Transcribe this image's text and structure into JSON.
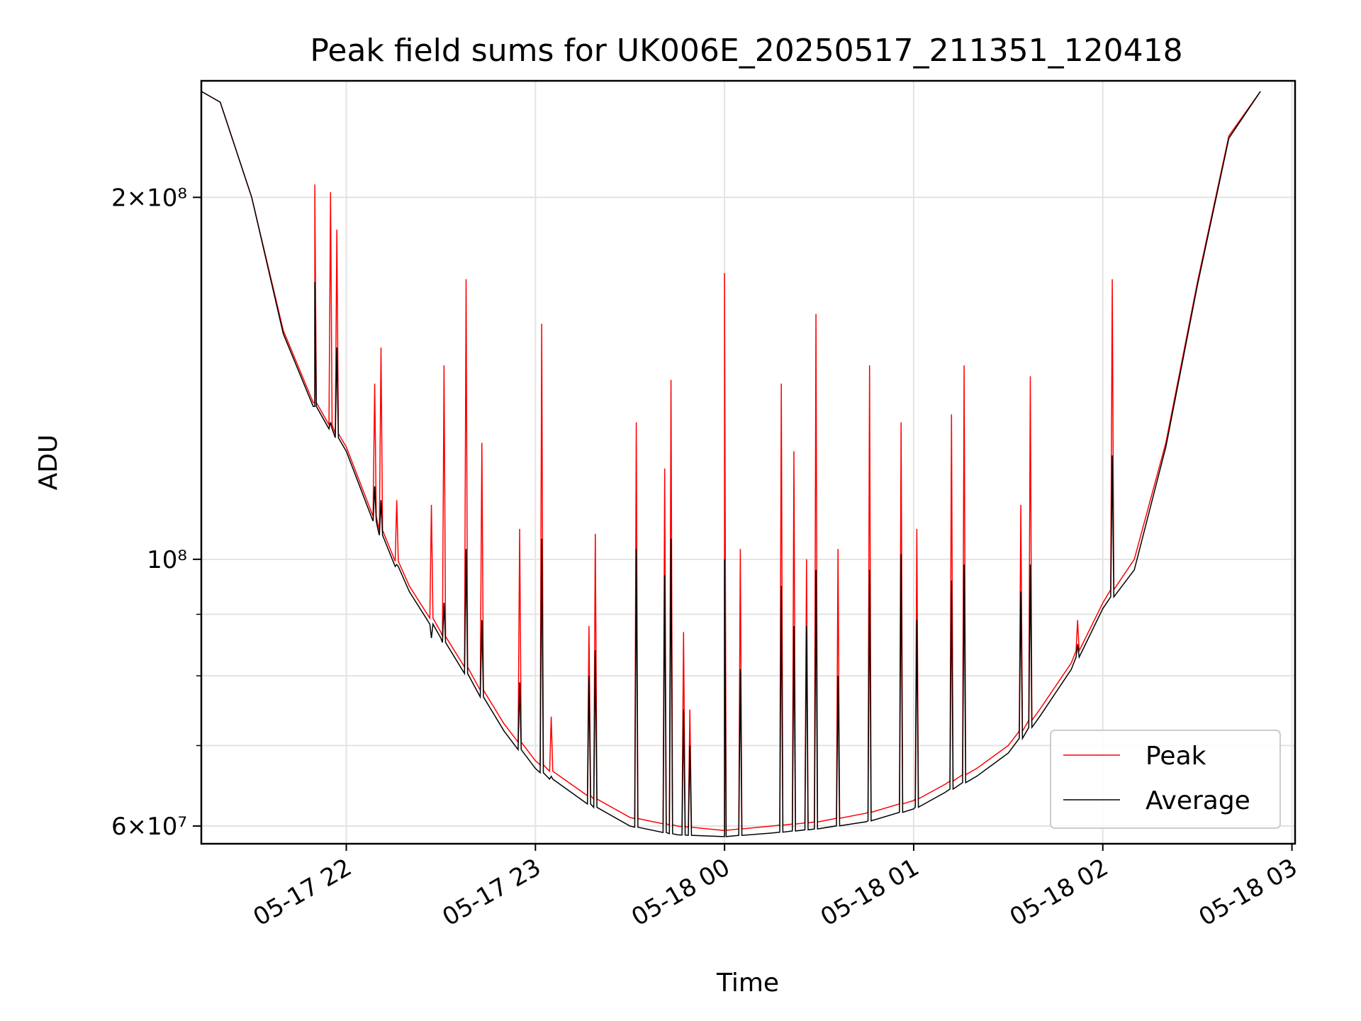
{
  "chart_data": {
    "type": "line",
    "title": "Peak field sums for UK006E_20250517_211351_120418",
    "xlabel": "Time",
    "ylabel": "ADU",
    "yscale": "log",
    "grid": true,
    "legend_position": "lower-right",
    "xlim": [
      "2025-05-17 21:14",
      "2025-05-18 03:01"
    ],
    "ylim": [
      58000000,
      250000000
    ],
    "x_ticks": [
      "05-17 22",
      "05-17 23",
      "05-18 00",
      "05-18 01",
      "05-18 02",
      "05-18 03"
    ],
    "y_ticks": [
      {
        "value": 60000000,
        "label": "6×10⁷"
      },
      {
        "value": 100000000,
        "label": "10⁸"
      },
      {
        "value": 200000000,
        "label": "2×10⁸"
      }
    ],
    "series": [
      {
        "name": "Peak",
        "color": "#ff0000",
        "x": [
          "2025-05-17 21:14",
          "2025-05-17 21:20",
          "2025-05-17 21:30",
          "2025-05-17 21:40",
          "2025-05-17 21:50",
          "2025-05-17 22:00",
          "2025-05-17 22:10",
          "2025-05-17 22:20",
          "2025-05-17 22:30",
          "2025-05-17 22:40",
          "2025-05-17 22:50",
          "2025-05-17 23:00",
          "2025-05-17 23:15",
          "2025-05-17 23:30",
          "2025-05-17 23:45",
          "2025-05-18 00:00",
          "2025-05-18 00:15",
          "2025-05-18 00:30",
          "2025-05-18 00:45",
          "2025-05-18 01:00",
          "2025-05-18 01:10",
          "2025-05-18 01:20",
          "2025-05-18 01:30",
          "2025-05-18 01:40",
          "2025-05-18 01:50",
          "2025-05-18 02:00",
          "2025-05-18 02:10",
          "2025-05-18 02:20",
          "2025-05-18 02:30",
          "2025-05-18 02:40",
          "2025-05-18 02:50"
        ],
        "values": [
          245000000,
          240000000,
          200000000,
          155000000,
          135000000,
          124000000,
          107000000,
          95000000,
          87000000,
          80000000,
          73000000,
          68000000,
          64000000,
          61000000,
          60000000,
          59500000,
          60000000,
          60500000,
          61500000,
          63000000,
          65000000,
          67000000,
          70000000,
          75000000,
          82000000,
          92000000,
          100000000,
          125000000,
          170000000,
          225000000,
          245000000
        ]
      },
      {
        "name": "Average",
        "color": "#000000",
        "x": [
          "2025-05-17 21:14",
          "2025-05-17 21:20",
          "2025-05-17 21:30",
          "2025-05-17 21:40",
          "2025-05-17 21:50",
          "2025-05-17 22:00",
          "2025-05-17 22:10",
          "2025-05-17 22:20",
          "2025-05-17 22:30",
          "2025-05-17 22:40",
          "2025-05-17 22:50",
          "2025-05-17 23:00",
          "2025-05-17 23:15",
          "2025-05-17 23:30",
          "2025-05-17 23:45",
          "2025-05-18 00:00",
          "2025-05-18 00:15",
          "2025-05-18 00:30",
          "2025-05-18 00:45",
          "2025-05-18 01:00",
          "2025-05-18 01:10",
          "2025-05-18 01:20",
          "2025-05-18 01:30",
          "2025-05-18 01:40",
          "2025-05-18 01:50",
          "2025-05-18 02:00",
          "2025-05-18 02:10",
          "2025-05-18 02:20",
          "2025-05-18 02:30",
          "2025-05-18 02:40",
          "2025-05-18 02:50"
        ],
        "values": [
          245000000,
          240000000,
          200000000,
          154000000,
          134000000,
          123000000,
          106000000,
          94000000,
          86000000,
          79000000,
          72000000,
          67000000,
          63000000,
          60000000,
          59000000,
          58800000,
          59200000,
          59700000,
          60500000,
          62000000,
          64000000,
          66000000,
          69000000,
          74000000,
          81000000,
          91000000,
          98000000,
          124000000,
          169000000,
          224000000,
          245000000
        ]
      }
    ],
    "spikes": [
      {
        "x": "2025-05-17 21:50",
        "peak": 205000000,
        "average": 170000000
      },
      {
        "x": "2025-05-17 21:55",
        "peak": 202000000,
        "average": 130000000
      },
      {
        "x": "2025-05-17 21:57",
        "peak": 188000000,
        "average": 150000000
      },
      {
        "x": "2025-05-17 22:09",
        "peak": 140000000,
        "average": 115000000
      },
      {
        "x": "2025-05-17 22:11",
        "peak": 150000000,
        "average": 112000000
      },
      {
        "x": "2025-05-17 22:16",
        "peak": 112000000,
        "average": 99000000
      },
      {
        "x": "2025-05-17 22:27",
        "peak": 111000000,
        "average": 86000000
      },
      {
        "x": "2025-05-17 22:31",
        "peak": 145000000,
        "average": 92000000
      },
      {
        "x": "2025-05-17 22:38",
        "peak": 171000000,
        "average": 102000000
      },
      {
        "x": "2025-05-17 22:43",
        "peak": 125000000,
        "average": 89000000
      },
      {
        "x": "2025-05-17 22:55",
        "peak": 106000000,
        "average": 79000000
      },
      {
        "x": "2025-05-17 23:02",
        "peak": 157000000,
        "average": 104000000
      },
      {
        "x": "2025-05-17 23:05",
        "peak": 74000000,
        "average": 66000000
      },
      {
        "x": "2025-05-17 23:17",
        "peak": 88000000,
        "average": 80000000
      },
      {
        "x": "2025-05-17 23:19",
        "peak": 105000000,
        "average": 84000000
      },
      {
        "x": "2025-05-17 23:32",
        "peak": 130000000,
        "average": 102000000
      },
      {
        "x": "2025-05-17 23:41",
        "peak": 119000000,
        "average": 97000000
      },
      {
        "x": "2025-05-17 23:43",
        "peak": 141000000,
        "average": 104000000
      },
      {
        "x": "2025-05-17 23:47",
        "peak": 87000000,
        "average": 75000000
      },
      {
        "x": "2025-05-17 23:49",
        "peak": 75000000,
        "average": 70000000
      },
      {
        "x": "2025-05-18 00:00",
        "peak": 173000000,
        "average": 100000000
      },
      {
        "x": "2025-05-18 00:05",
        "peak": 102000000,
        "average": 81000000
      },
      {
        "x": "2025-05-18 00:18",
        "peak": 140000000,
        "average": 95000000
      },
      {
        "x": "2025-05-18 00:22",
        "peak": 123000000,
        "average": 88000000
      },
      {
        "x": "2025-05-18 00:26",
        "peak": 100000000,
        "average": 88000000
      },
      {
        "x": "2025-05-18 00:29",
        "peak": 160000000,
        "average": 98000000
      },
      {
        "x": "2025-05-18 00:36",
        "peak": 102000000,
        "average": 80000000
      },
      {
        "x": "2025-05-18 00:46",
        "peak": 145000000,
        "average": 98000000
      },
      {
        "x": "2025-05-18 00:56",
        "peak": 130000000,
        "average": 101000000
      },
      {
        "x": "2025-05-18 01:01",
        "peak": 106000000,
        "average": 89000000
      },
      {
        "x": "2025-05-18 01:12",
        "peak": 132000000,
        "average": 96000000
      },
      {
        "x": "2025-05-18 01:16",
        "peak": 145000000,
        "average": 99000000
      },
      {
        "x": "2025-05-18 01:34",
        "peak": 111000000,
        "average": 94000000
      },
      {
        "x": "2025-05-18 01:37",
        "peak": 142000000,
        "average": 99000000
      },
      {
        "x": "2025-05-18 01:52",
        "peak": 89000000,
        "average": 85000000
      },
      {
        "x": "2025-05-18 02:03",
        "peak": 171000000,
        "average": 122000000
      }
    ]
  }
}
